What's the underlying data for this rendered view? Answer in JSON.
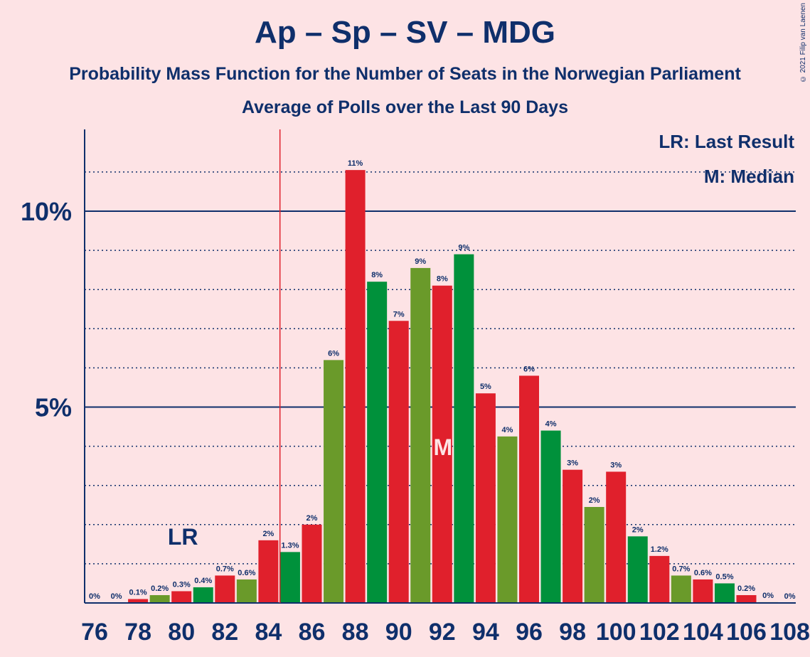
{
  "title": "Ap – Sp – SV – MDG",
  "subtitle": "Probability Mass Function for the Number of Seats in the Norwegian Parliament",
  "subtitle2": "Average of Polls over the Last 90 Days",
  "copyright": "© 2021 Filip van Laenen",
  "legend": {
    "lr": "LR: Last Result",
    "m": "M: Median"
  },
  "colors": {
    "background": "#FDE3E5",
    "text": "#0F2F6B",
    "red": "#E0202C",
    "green": "#00913B",
    "olive": "#6A9A2A",
    "majority_line": "#E0202C"
  },
  "chart_data": {
    "type": "bar",
    "xlabel": "",
    "ylabel": "",
    "ylim": [
      0,
      12
    ],
    "ytick_values": [
      5,
      10
    ],
    "ytick_labels": [
      "5%",
      "10%"
    ],
    "xtick_labels": [
      "76",
      "78",
      "80",
      "82",
      "84",
      "86",
      "88",
      "90",
      "92",
      "94",
      "96",
      "98",
      "100",
      "102",
      "104",
      "106",
      "108"
    ],
    "majority_line_x": 85,
    "last_result": 80,
    "last_result_label": "LR",
    "median": 92,
    "median_label": "M",
    "grid": "dotted horizontal lines every 1%, solid at 5% and 10%",
    "bars": [
      {
        "x": 76,
        "value": 0,
        "label": "0%",
        "color": "red"
      },
      {
        "x": 77,
        "value": 0,
        "label": "0%",
        "color": "red"
      },
      {
        "x": 78,
        "value": 0.1,
        "label": "0.1%",
        "color": "red"
      },
      {
        "x": 79,
        "value": 0.2,
        "label": "0.2%",
        "color": "olive"
      },
      {
        "x": 80,
        "value": 0.3,
        "label": "0.3%",
        "color": "red"
      },
      {
        "x": 81,
        "value": 0.4,
        "label": "0.4%",
        "color": "green"
      },
      {
        "x": 82,
        "value": 0.7,
        "label": "0.7%",
        "color": "red"
      },
      {
        "x": 83,
        "value": 0.6,
        "label": "0.6%",
        "color": "olive"
      },
      {
        "x": 84,
        "value": 1.6,
        "label": "2%",
        "color": "red"
      },
      {
        "x": 85,
        "value": 1.3,
        "label": "1.3%",
        "color": "green"
      },
      {
        "x": 86,
        "value": 2.0,
        "label": "2%",
        "color": "red"
      },
      {
        "x": 87,
        "value": 6.2,
        "label": "6%",
        "color": "olive"
      },
      {
        "x": 88,
        "value": 11.05,
        "label": "11%",
        "color": "red"
      },
      {
        "x": 89,
        "value": 8.2,
        "label": "8%",
        "color": "green"
      },
      {
        "x": 90,
        "value": 7.2,
        "label": "7%",
        "color": "red"
      },
      {
        "x": 91,
        "value": 8.55,
        "label": "9%",
        "color": "olive"
      },
      {
        "x": 92,
        "value": 8.1,
        "label": "8%",
        "color": "red"
      },
      {
        "x": 93,
        "value": 8.9,
        "label": "9%",
        "color": "green"
      },
      {
        "x": 94,
        "value": 5.35,
        "label": "5%",
        "color": "red"
      },
      {
        "x": 95,
        "value": 4.25,
        "label": "4%",
        "color": "olive"
      },
      {
        "x": 96,
        "value": 5.8,
        "label": "6%",
        "color": "red"
      },
      {
        "x": 97,
        "value": 4.4,
        "label": "4%",
        "color": "green"
      },
      {
        "x": 98,
        "value": 3.4,
        "label": "3%",
        "color": "red"
      },
      {
        "x": 99,
        "value": 2.45,
        "label": "2%",
        "color": "olive"
      },
      {
        "x": 100,
        "value": 3.35,
        "label": "3%",
        "color": "red"
      },
      {
        "x": 101,
        "value": 1.7,
        "label": "2%",
        "color": "green"
      },
      {
        "x": 102,
        "value": 1.2,
        "label": "1.2%",
        "color": "red"
      },
      {
        "x": 103,
        "value": 0.7,
        "label": "0.7%",
        "color": "olive"
      },
      {
        "x": 104,
        "value": 0.6,
        "label": "0.6%",
        "color": "red"
      },
      {
        "x": 105,
        "value": 0.5,
        "label": "0.5%",
        "color": "green"
      },
      {
        "x": 106,
        "value": 0.2,
        "label": "0.2%",
        "color": "red"
      },
      {
        "x": 107,
        "value": 0.02,
        "label": "0%",
        "color": "olive"
      },
      {
        "x": 108,
        "value": 0,
        "label": "0%",
        "color": "red"
      }
    ]
  }
}
